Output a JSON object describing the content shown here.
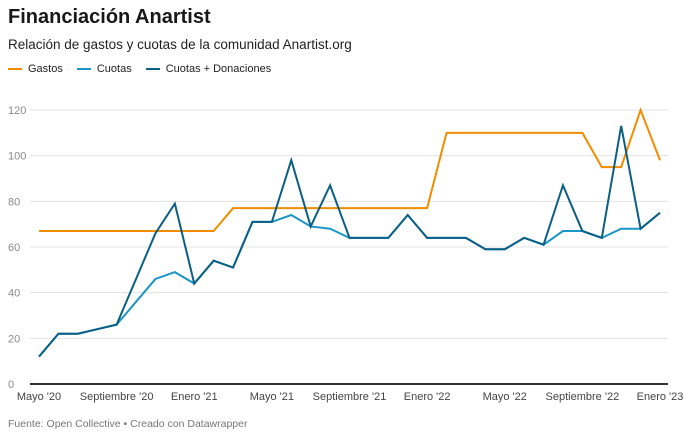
{
  "chart_data": {
    "type": "line",
    "title": "Financiación Anartist",
    "subtitle": "Relación de gastos y cuotas de la comunidad Anartist.org",
    "source": "Fuente: Open Collective • Creado con Datawrapper",
    "x": [
      "May 2020",
      "Jun 2020",
      "Jul 2020",
      "Aug 2020",
      "Sep 2020",
      "Oct 2020",
      "Nov 2020",
      "Dec 2020",
      "Jan 2021",
      "Feb 2021",
      "Mar 2021",
      "Apr 2021",
      "May 2021",
      "Jun 2021",
      "Jul 2021",
      "Aug 2021",
      "Sep 2021",
      "Oct 2021",
      "Nov 2021",
      "Dec 2021",
      "Jan 2022",
      "Feb 2022",
      "Mar 2022",
      "Apr 2022",
      "May 2022",
      "Jun 2022",
      "Jul 2022",
      "Aug 2022",
      "Sep 2022",
      "Oct 2022",
      "Nov 2022",
      "Dec 2022",
      "Jan 2023"
    ],
    "x_tick_labels": [
      {
        "index": 0,
        "label": "Mayo '20"
      },
      {
        "index": 4,
        "label": "Septiembre '20"
      },
      {
        "index": 8,
        "label": "Enero '21"
      },
      {
        "index": 12,
        "label": "Mayo '21"
      },
      {
        "index": 16,
        "label": "Septiembre '21"
      },
      {
        "index": 20,
        "label": "Enero '22"
      },
      {
        "index": 24,
        "label": "Mayo '22"
      },
      {
        "index": 28,
        "label": "Septiembre '22"
      },
      {
        "index": 32,
        "label": "Enero '23"
      }
    ],
    "y_ticks": [
      0,
      20,
      40,
      60,
      80,
      100,
      120
    ],
    "ylim": [
      0,
      120
    ],
    "grid": true,
    "legend": "top-left",
    "series": [
      {
        "name": "Gastos",
        "color": "#f28c00",
        "values": [
          67,
          67,
          67,
          67,
          67,
          67,
          67,
          67,
          67,
          67,
          77,
          77,
          77,
          77,
          77,
          77,
          77,
          77,
          77,
          77,
          77,
          110,
          110,
          110,
          110,
          110,
          110,
          110,
          110,
          95,
          95,
          120,
          98
        ]
      },
      {
        "name": "Cuotas",
        "color": "#1b96c6",
        "values": [
          12,
          22,
          22,
          24,
          26,
          36,
          46,
          49,
          44,
          54,
          51,
          71,
          71,
          74,
          69,
          68,
          64,
          64,
          64,
          74,
          64,
          64,
          64,
          59,
          59,
          64,
          61,
          67,
          67,
          64,
          68,
          68,
          75
        ]
      },
      {
        "name": "Cuotas + Donaciones",
        "color": "#0a5f84",
        "values": [
          12,
          22,
          22,
          24,
          26,
          46,
          66,
          79,
          44,
          54,
          51,
          71,
          71,
          98,
          69,
          87,
          64,
          64,
          64,
          74,
          64,
          64,
          64,
          59,
          59,
          64,
          61,
          87,
          67,
          64,
          113,
          68,
          75
        ]
      }
    ]
  }
}
